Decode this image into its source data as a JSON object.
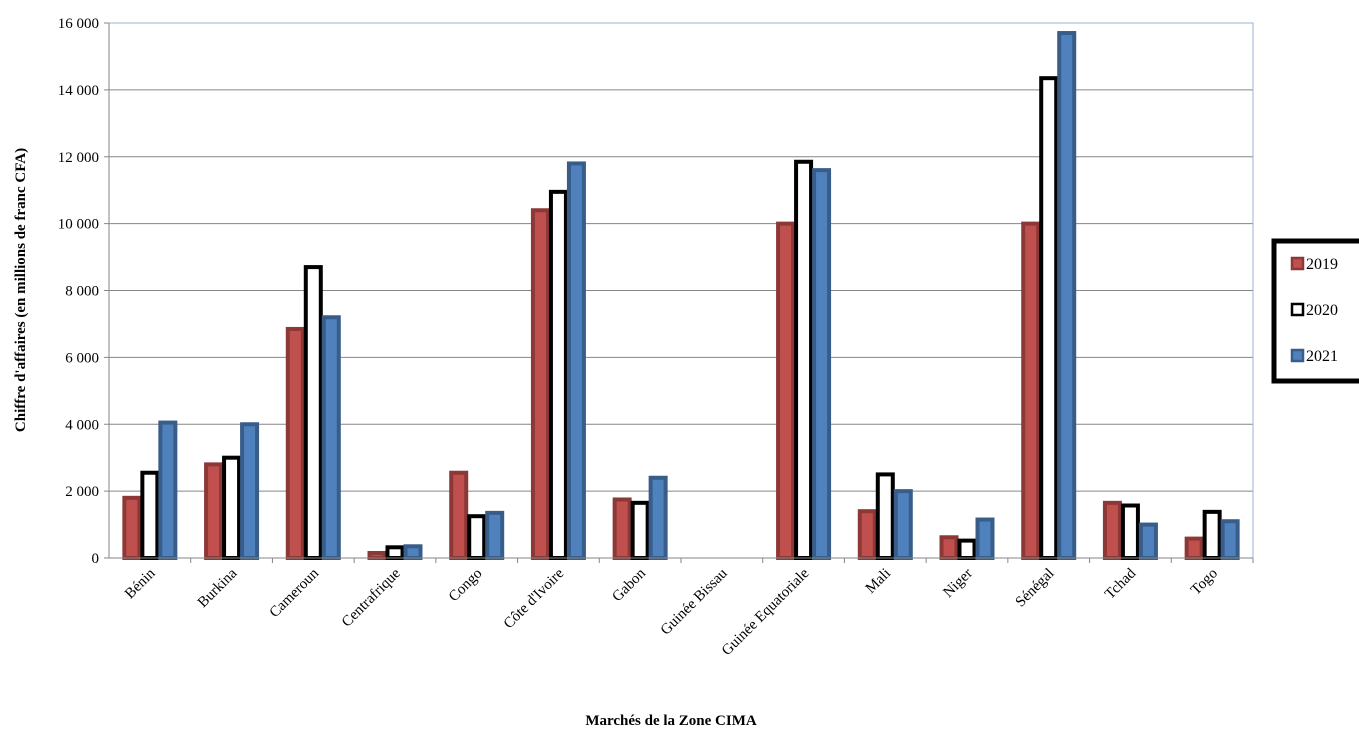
{
  "chart_data": {
    "type": "bar",
    "title": "",
    "xlabel": "Marchés de la Zone CIMA",
    "ylabel": "Chiffre d'affaires (en millions de franc CFA)",
    "ylim": [
      0,
      16000
    ],
    "yticks": [
      "0",
      "2 000",
      "4 000",
      "6 000",
      "8 000",
      "10 000",
      "12 000",
      "14 000",
      "16 000"
    ],
    "grid": true,
    "legend_position": "right",
    "categories": [
      "Bénin",
      "Burkina",
      "Cameroun",
      "Centrafrique",
      "Congo",
      "Côte d'Ivoire",
      "Gabon",
      "Guinée Bissau",
      "Guinée Equatoriale",
      "Mali",
      "Niger",
      "Sénégal",
      "Tchad",
      "Togo"
    ],
    "series": [
      {
        "name": "2019",
        "color": "#C0504D",
        "stroke": "#8C3836",
        "values": [
          1800,
          2800,
          6850,
          150,
          2550,
          10400,
          1750,
          0,
          10000,
          1400,
          620,
          10000,
          1650,
          580
        ]
      },
      {
        "name": "2020",
        "color": "#FFFFFF",
        "stroke": "#000000",
        "values": [
          2550,
          3000,
          8700,
          320,
          1250,
          10950,
          1650,
          0,
          11850,
          2500,
          520,
          14350,
          1570,
          1380
        ]
      },
      {
        "name": "2021",
        "color": "#4F81BD",
        "stroke": "#385D8A",
        "values": [
          4050,
          4000,
          7200,
          350,
          1350,
          11800,
          2400,
          0,
          11600,
          2000,
          1150,
          15700,
          1000,
          1100
        ]
      }
    ]
  }
}
